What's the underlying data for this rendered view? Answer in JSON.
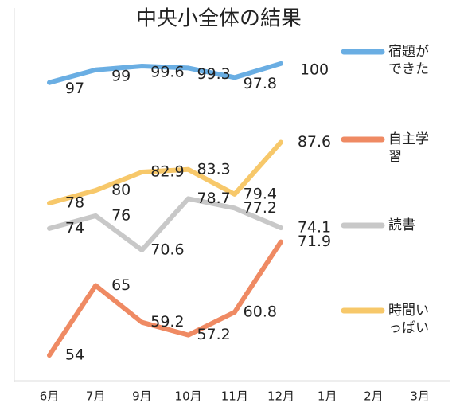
{
  "chart_data": {
    "type": "line",
    "title": "中央小全体の結果",
    "categories": [
      "6月",
      "7月",
      "9月",
      "10月",
      "11月",
      "12月",
      "1月",
      "2月",
      "3月"
    ],
    "series": [
      {
        "name": "宿題ができた",
        "color": "#6aaee3",
        "values": [
          97,
          99,
          99.6,
          99.3,
          97.8,
          100,
          null,
          null,
          null
        ]
      },
      {
        "name": "自主学習",
        "color": "#ef8a63",
        "values": [
          54,
          65,
          59.2,
          57.2,
          60.8,
          71.9,
          null,
          null,
          null
        ]
      },
      {
        "name": "読書",
        "color": "#c8c8c8",
        "values": [
          74,
          76,
          70.6,
          78.7,
          77.2,
          74.1,
          null,
          null,
          null
        ]
      },
      {
        "name": "時間いっぱい",
        "color": "#f7c86a",
        "values": [
          78,
          80,
          82.9,
          83.3,
          79.4,
          87.6,
          null,
          null,
          null
        ]
      }
    ],
    "ylim": [
      51,
      105
    ]
  }
}
